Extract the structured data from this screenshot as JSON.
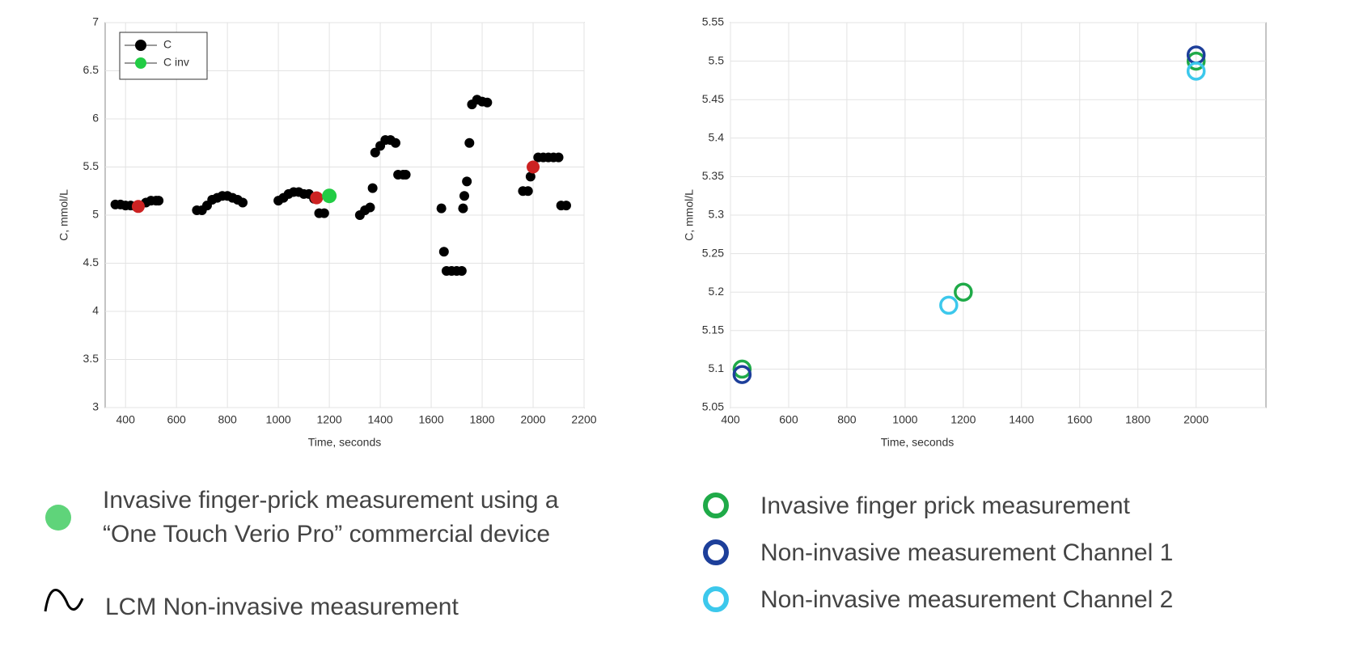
{
  "chart_data": [
    {
      "type": "scatter",
      "xlabel": "Time, seconds",
      "ylabel": "C, mmol/L",
      "xlim": [
        320,
        2200
      ],
      "xticks": [
        400,
        600,
        800,
        1000,
        1200,
        1400,
        1600,
        1800,
        2000,
        2200
      ],
      "ylim": [
        3,
        7
      ],
      "yticks": [
        3,
        3.5,
        4,
        4.5,
        5,
        5.5,
        6,
        6.5,
        7
      ],
      "grid": true,
      "legend": "upper-left",
      "series": [
        {
          "name": "C",
          "color": "#000000",
          "x": [
            360,
            380,
            400,
            420,
            440,
            480,
            500,
            520,
            530,
            680,
            700,
            720,
            740,
            760,
            780,
            800,
            820,
            840,
            860,
            1000,
            1020,
            1040,
            1060,
            1080,
            1100,
            1120,
            1140,
            1160,
            1180,
            1320,
            1340,
            1360,
            1370,
            1380,
            1400,
            1420,
            1440,
            1460,
            1470,
            1490,
            1500,
            1640,
            1650,
            1660,
            1680,
            1700,
            1720,
            1725,
            1730,
            1740,
            1750,
            1760,
            1780,
            1800,
            1820,
            1960,
            1980,
            1990,
            2020,
            2040,
            2060,
            2080,
            2100,
            2110,
            2130
          ],
          "values": [
            5.11,
            5.11,
            5.1,
            5.1,
            5.09,
            5.13,
            5.15,
            5.15,
            5.15,
            5.05,
            5.05,
            5.1,
            5.16,
            5.18,
            5.2,
            5.2,
            5.18,
            5.16,
            5.13,
            5.15,
            5.18,
            5.22,
            5.24,
            5.24,
            5.22,
            5.22,
            5.17,
            5.02,
            5.02,
            5.0,
            5.05,
            5.08,
            5.28,
            5.65,
            5.72,
            5.78,
            5.78,
            5.75,
            5.42,
            5.42,
            5.42,
            5.07,
            4.62,
            4.42,
            4.42,
            4.42,
            4.42,
            5.07,
            5.2,
            5.35,
            5.75,
            6.15,
            6.2,
            6.18,
            6.17,
            5.25,
            5.25,
            5.4,
            5.6,
            5.6,
            5.6,
            5.6,
            5.6,
            5.1,
            5.1
          ]
        },
        {
          "color": "#cc2222",
          "x": [
            450,
            1150,
            2000
          ],
          "values": [
            5.09,
            5.18,
            5.5
          ]
        },
        {
          "name": "C inv",
          "color": "#22cc44",
          "x": [
            1200
          ],
          "values": [
            5.2
          ]
        }
      ],
      "caption": [
        {
          "marker": "dot",
          "color": "#5fd47a",
          "lines": [
            "Invasive finger-prick measurement using a",
            "“One Touch Verio Pro” commercial device"
          ]
        },
        {
          "marker": "curve",
          "color": "#000000",
          "lines": [
            "LCM Non-invasive measurement"
          ]
        }
      ]
    },
    {
      "type": "scatter",
      "xlabel": "Time, seconds",
      "ylabel": "C, mmol/L",
      "xlim": [
        400,
        2240
      ],
      "xticks": [
        400,
        600,
        800,
        1000,
        1200,
        1400,
        1600,
        1800,
        2000
      ],
      "ylim": [
        5.05,
        5.55
      ],
      "yticks": [
        5.05,
        5.1,
        5.15,
        5.2,
        5.25,
        5.3,
        5.35,
        5.4,
        5.45,
        5.5,
        5.55
      ],
      "grid": true,
      "legend": "below",
      "series": [
        {
          "name": "Invasive  finger prick measurement",
          "color": "#1faa48",
          "x": [
            440,
            1200,
            2000
          ],
          "values": [
            5.1,
            5.2,
            5.5
          ]
        },
        {
          "name": "Non-invasive  measurement Channel 1",
          "color": "#1d3f9a",
          "x": [
            440,
            2000
          ],
          "values": [
            5.093,
            5.508
          ]
        },
        {
          "name": "Non-invasive  measurement Channel 2",
          "color": "#3cc8ec",
          "x": [
            1150,
            2000
          ],
          "values": [
            5.183,
            5.487
          ]
        }
      ]
    }
  ]
}
